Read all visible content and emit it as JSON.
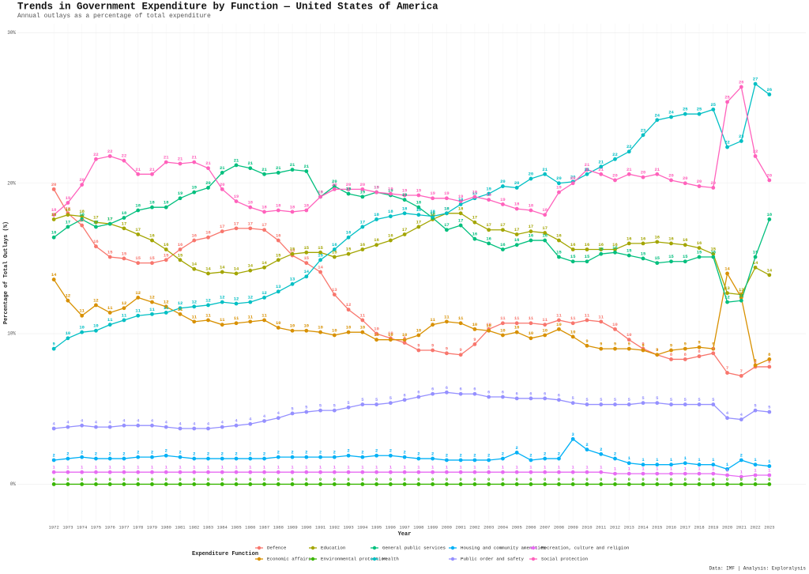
{
  "chart_data": {
    "type": "line",
    "title": "Trends in Government Expenditure by Function — United States of America",
    "subtitle": "Annual outlays as a percentage of total expenditure",
    "xlabel": "Year",
    "ylabel": "Percentage of Total Outlays (%)",
    "legend_title": "Expenditure Function",
    "caption": "Data: IMF | Analysis: Exploralysis",
    "legend_position": "bottom",
    "grid": true,
    "x": [
      1972,
      1973,
      1974,
      1975,
      1976,
      1977,
      1978,
      1979,
      1980,
      1981,
      1982,
      1983,
      1984,
      1985,
      1986,
      1987,
      1988,
      1989,
      1990,
      1991,
      1992,
      1993,
      1994,
      1995,
      1996,
      1997,
      1998,
      1999,
      2000,
      2001,
      2002,
      2003,
      2004,
      2005,
      2006,
      2007,
      2008,
      2009,
      2010,
      2011,
      2012,
      2013,
      2014,
      2015,
      2016,
      2017,
      2018,
      2019,
      2020,
      2021,
      2022,
      2023
    ],
    "xlim": [
      1969.4,
      2025.6
    ],
    "xticks": [
      1972,
      1973,
      1974,
      1975,
      1976,
      1977,
      1978,
      1979,
      1980,
      1981,
      1982,
      1983,
      1984,
      1985,
      1986,
      1987,
      1988,
      1989,
      1990,
      1991,
      1992,
      1993,
      1994,
      1995,
      1996,
      1997,
      1998,
      1999,
      2000,
      2001,
      2002,
      2003,
      2004,
      2005,
      2006,
      2007,
      2008,
      2009,
      2010,
      2011,
      2012,
      2013,
      2014,
      2015,
      2016,
      2017,
      2018,
      2019,
      2020,
      2021,
      2022,
      2023
    ],
    "ylim": [
      -2.5,
      30.6
    ],
    "yticks": [
      {
        "value": 0,
        "label": "0%"
      },
      {
        "value": 10,
        "label": "10%"
      },
      {
        "value": 20,
        "label": "20%"
      },
      {
        "value": 30,
        "label": "30%"
      }
    ],
    "series": [
      {
        "name": "Defence",
        "color": "#F8766D",
        "values": [
          19.6,
          18.0,
          17.2,
          15.8,
          15.1,
          15.0,
          14.7,
          14.7,
          14.9,
          15.6,
          16.2,
          16.4,
          16.8,
          17.0,
          17.0,
          16.9,
          16.2,
          15.2,
          14.7,
          14.1,
          12.6,
          11.6,
          10.9,
          10.0,
          9.7,
          9.4,
          8.9,
          8.9,
          8.7,
          8.6,
          9.3,
          10.3,
          10.7,
          10.7,
          10.7,
          10.6,
          10.9,
          10.7,
          10.9,
          10.8,
          10.3,
          9.6,
          9.0,
          8.6,
          8.3,
          8.3,
          8.5,
          8.7,
          7.4,
          7.2,
          7.8,
          7.8
        ],
        "value_labels": [
          "20",
          "18",
          "17",
          "16",
          "15",
          "15",
          "15",
          "15",
          "15",
          "16",
          "16",
          "16",
          "17",
          "17",
          "17",
          "17",
          "16",
          "15",
          "15",
          "14",
          "13",
          "12",
          "11",
          "10",
          "10",
          "9",
          "9",
          "9",
          "9",
          "9",
          "9",
          "10",
          "11",
          "11",
          "11",
          "11",
          "11",
          "11",
          "11",
          "11",
          "10",
          "10",
          "9",
          "9",
          "8",
          "8",
          "8",
          "9",
          "7",
          "7",
          "8",
          "8"
        ]
      },
      {
        "name": "Economic affairs",
        "color": "#D89000",
        "values": [
          13.6,
          12.2,
          11.2,
          11.9,
          11.4,
          11.7,
          12.4,
          12.1,
          11.8,
          11.3,
          10.8,
          10.9,
          10.6,
          10.7,
          10.8,
          10.9,
          10.4,
          10.2,
          10.2,
          10.1,
          9.9,
          10.1,
          10.1,
          9.6,
          9.6,
          9.6,
          9.9,
          10.6,
          10.8,
          10.7,
          10.3,
          10.2,
          9.9,
          10.1,
          9.7,
          9.9,
          10.3,
          9.8,
          9.2,
          9.0,
          9.0,
          9.0,
          8.9,
          8.6,
          8.9,
          9.0,
          9.1,
          9.0,
          14.0,
          12.4,
          7.9,
          8.3
        ],
        "value_labels": [
          "14",
          "12",
          "11",
          "12",
          "11",
          "12",
          "12",
          "12",
          "12",
          "11",
          "11",
          "11",
          "11",
          "11",
          "11",
          "11",
          "10",
          "10",
          "10",
          "10",
          "10",
          "10",
          "10",
          "10",
          "10",
          "10",
          "10",
          "11",
          "11",
          "11",
          "10",
          "10",
          "10",
          "10",
          "10",
          "10",
          "10",
          "10",
          "9",
          "9",
          "9",
          "9",
          "9",
          "9",
          "9",
          "9",
          "9",
          "9",
          "14",
          "12",
          "8",
          "8"
        ]
      },
      {
        "name": "Education",
        "color": "#A3A500",
        "values": [
          17.6,
          17.9,
          17.8,
          17.4,
          17.3,
          17.0,
          16.6,
          16.2,
          15.6,
          14.9,
          14.3,
          14.0,
          14.1,
          14.0,
          14.2,
          14.4,
          14.9,
          15.3,
          15.4,
          15.4,
          15.1,
          15.3,
          15.6,
          15.9,
          16.2,
          16.6,
          17.1,
          17.6,
          18.0,
          18.0,
          17.4,
          16.9,
          16.9,
          16.6,
          16.8,
          16.7,
          16.2,
          15.6,
          15.6,
          15.6,
          15.6,
          16.0,
          16.0,
          16.1,
          16.0,
          15.9,
          15.7,
          15.3,
          12.7,
          12.6,
          14.4,
          13.9
        ],
        "value_labels": [
          "18",
          "18",
          "18",
          "17",
          "17",
          "17",
          "17",
          "16",
          "16",
          "15",
          "14",
          "14",
          "14",
          "14",
          "14",
          "14",
          "15",
          "15",
          "15",
          "15",
          "15",
          "15",
          "16",
          "16",
          "16",
          "17",
          "17",
          "18",
          "18",
          "18",
          "17",
          "17",
          "17",
          "17",
          "17",
          "17",
          "16",
          "16",
          "16",
          "16",
          "16",
          "16",
          "16",
          "16",
          "16",
          "16",
          "16",
          "15",
          "13",
          "13",
          "14",
          "14"
        ]
      },
      {
        "name": "Environmental protection",
        "color": "#39B600",
        "values": [
          0,
          0,
          0,
          0,
          0,
          0,
          0,
          0,
          0,
          0,
          0,
          0,
          0,
          0,
          0,
          0,
          0,
          0,
          0,
          0,
          0,
          0,
          0,
          0,
          0,
          0,
          0,
          0,
          0,
          0,
          0,
          0,
          0,
          0,
          0,
          0,
          0,
          0,
          0,
          0,
          0,
          0,
          0,
          0,
          0,
          0,
          0,
          0,
          0,
          0,
          0,
          0
        ]
      },
      {
        "name": "General public services",
        "color": "#00BF7D",
        "values": [
          16.4,
          17.1,
          17.6,
          17.1,
          17.3,
          17.7,
          18.2,
          18.4,
          18.4,
          19.0,
          19.4,
          19.7,
          20.7,
          21.2,
          21.0,
          20.6,
          20.7,
          20.9,
          20.8,
          19.1,
          19.8,
          19.3,
          19.1,
          19.4,
          19.2,
          18.9,
          18.4,
          17.7,
          16.9,
          17.2,
          16.3,
          16.0,
          15.6,
          15.9,
          16.2,
          16.2,
          15.1,
          14.8,
          14.8,
          15.3,
          15.4,
          15.2,
          15.0,
          14.7,
          14.8,
          14.8,
          15.1,
          15.1,
          12.1,
          12.2,
          15.1,
          17.6
        ],
        "value_labels": [
          "16",
          "17",
          "18",
          "17",
          "17",
          "18",
          "18",
          "18",
          "18",
          "19",
          "19",
          "20",
          "21",
          "21",
          "21",
          "21",
          "21",
          "21",
          "21",
          "19",
          "20",
          "19",
          "19",
          "19",
          "19",
          "19",
          "18",
          "18",
          "17",
          "17",
          "16",
          "16",
          "16",
          "16",
          "16",
          "16",
          "15",
          "15",
          "15",
          "15",
          "15",
          "15",
          "15",
          "15",
          "15",
          "15",
          "15",
          "15",
          "12",
          "12",
          "15",
          "18"
        ]
      },
      {
        "name": "Health",
        "color": "#00BFC4",
        "values": [
          9.0,
          9.7,
          10.1,
          10.2,
          10.6,
          10.9,
          11.2,
          11.3,
          11.4,
          11.7,
          11.8,
          11.9,
          12.1,
          12.0,
          12.1,
          12.4,
          12.8,
          13.3,
          13.8,
          14.9,
          15.6,
          16.4,
          17.1,
          17.6,
          17.8,
          18.0,
          17.9,
          17.8,
          18.0,
          18.6,
          19.0,
          19.3,
          19.8,
          19.7,
          20.3,
          20.6,
          20.0,
          20.1,
          20.6,
          21.1,
          21.6,
          22.1,
          23.2,
          24.2,
          24.4,
          24.6,
          24.6,
          24.9,
          22.4,
          22.8,
          26.6,
          25.9
        ],
        "value_labels": [
          "9",
          "10",
          "10",
          "10",
          "11",
          "11",
          "11",
          "11",
          "11",
          "12",
          "12",
          "12",
          "12",
          "12",
          "12",
          "12",
          "13",
          "13",
          "14",
          "15",
          "16",
          "16",
          "17",
          "18",
          "18",
          "18",
          "18",
          "18",
          "18",
          "19",
          "19",
          "19",
          "20",
          "20",
          "20",
          "21",
          "20",
          "20",
          "21",
          "21",
          "22",
          "22",
          "23",
          "24",
          "24",
          "25",
          "25",
          "25",
          "22",
          "23",
          "27",
          "26"
        ]
      },
      {
        "name": "Housing and community amenities",
        "color": "#00B0F6",
        "values": [
          1.6,
          1.7,
          1.8,
          1.7,
          1.7,
          1.7,
          1.8,
          1.8,
          1.9,
          1.8,
          1.7,
          1.7,
          1.7,
          1.7,
          1.7,
          1.7,
          1.8,
          1.8,
          1.8,
          1.8,
          1.8,
          1.9,
          1.8,
          1.9,
          1.9,
          1.8,
          1.7,
          1.7,
          1.6,
          1.6,
          1.6,
          1.6,
          1.7,
          2.1,
          1.6,
          1.7,
          1.7,
          3.0,
          2.3,
          2.0,
          1.7,
          1.4,
          1.3,
          1.3,
          1.3,
          1.4,
          1.3,
          1.3,
          1.0,
          1.6,
          1.3,
          1.2
        ],
        "value_labels": [
          "2",
          "2",
          "2",
          "2",
          "2",
          "2",
          "2",
          "2",
          "2",
          "2",
          "2",
          "2",
          "2",
          "2",
          "2",
          "2",
          "2",
          "2",
          "2",
          "2",
          "2",
          "2",
          "2",
          "2",
          "2",
          "2",
          "2",
          "2",
          "2",
          "2",
          "2",
          "2",
          "2",
          "2",
          "2",
          "2",
          "2",
          "3",
          "2",
          "2",
          "2",
          "1",
          "1",
          "1",
          "1",
          "1",
          "1",
          "1",
          "1",
          "2",
          "1",
          "1"
        ]
      },
      {
        "name": "Public order and safety",
        "color": "#9590FF",
        "values": [
          3.7,
          3.8,
          3.9,
          3.8,
          3.8,
          3.9,
          3.9,
          3.9,
          3.8,
          3.7,
          3.7,
          3.7,
          3.8,
          3.9,
          4.0,
          4.2,
          4.4,
          4.7,
          4.8,
          4.9,
          4.9,
          5.1,
          5.3,
          5.3,
          5.4,
          5.6,
          5.8,
          6.0,
          6.1,
          6.0,
          6.0,
          5.8,
          5.8,
          5.7,
          5.7,
          5.7,
          5.6,
          5.4,
          5.3,
          5.3,
          5.3,
          5.3,
          5.4,
          5.4,
          5.3,
          5.3,
          5.3,
          5.3,
          4.4,
          4.3,
          4.9,
          4.8
        ],
        "value_labels": [
          "4",
          "4",
          "4",
          "4",
          "4",
          "4",
          "4",
          "4",
          "4",
          "4",
          "4",
          "4",
          "4",
          "4",
          "4",
          "4",
          "4",
          "5",
          "5",
          "5",
          "5",
          "5",
          "5",
          "5",
          "5",
          "6",
          "6",
          "6",
          "6",
          "6",
          "6",
          "6",
          "6",
          "6",
          "6",
          "6",
          "6",
          "5",
          "5",
          "5",
          "5",
          "5",
          "5",
          "5",
          "5",
          "5",
          "5",
          "5",
          "4",
          "4",
          "5",
          "5"
        ]
      },
      {
        "name": "Recreation, culture and religion",
        "color": "#E76BF3",
        "values": [
          0.8,
          0.8,
          0.8,
          0.8,
          0.8,
          0.8,
          0.8,
          0.8,
          0.8,
          0.8,
          0.8,
          0.8,
          0.8,
          0.8,
          0.8,
          0.8,
          0.8,
          0.8,
          0.8,
          0.8,
          0.8,
          0.8,
          0.8,
          0.8,
          0.8,
          0.8,
          0.8,
          0.8,
          0.8,
          0.8,
          0.8,
          0.8,
          0.8,
          0.8,
          0.8,
          0.8,
          0.8,
          0.8,
          0.8,
          0.8,
          0.7,
          0.7,
          0.7,
          0.7,
          0.7,
          0.7,
          0.7,
          0.7,
          0.6,
          0.5,
          0.6,
          0.6
        ],
        "value_labels": [
          "1",
          "1",
          "1",
          "1",
          "1",
          "1",
          "1",
          "1",
          "1",
          "1",
          "1",
          "1",
          "1",
          "1",
          "1",
          "1",
          "1",
          "1",
          "1",
          "1",
          "1",
          "1",
          "1",
          "1",
          "1",
          "1",
          "1",
          "1",
          "1",
          "1",
          "1",
          "1",
          "1",
          "1",
          "1",
          "1",
          "1",
          "1",
          "1",
          "1",
          "1",
          "1",
          "1",
          "1",
          "1",
          "1",
          "1",
          "1",
          "1",
          "1",
          "1",
          "1"
        ]
      },
      {
        "name": "Social protection",
        "color": "#FF62BC",
        "values": [
          17.9,
          18.7,
          19.9,
          21.6,
          21.8,
          21.5,
          20.6,
          20.6,
          21.4,
          21.3,
          21.4,
          21.0,
          19.6,
          18.8,
          18.4,
          18.1,
          18.2,
          18.1,
          18.2,
          19.1,
          19.6,
          19.6,
          19.6,
          19.4,
          19.3,
          19.2,
          19.2,
          19.0,
          19.0,
          18.8,
          19.1,
          18.9,
          18.6,
          18.3,
          18.2,
          17.9,
          19.4,
          20.0,
          20.9,
          20.6,
          20.2,
          20.6,
          20.4,
          20.6,
          20.2,
          20.0,
          19.8,
          19.7,
          25.4,
          26.4,
          21.8,
          20.2
        ],
        "value_labels": [
          "18",
          "19",
          "20",
          "22",
          "22",
          "22",
          "21",
          "21",
          "21",
          "21",
          "21",
          "21",
          "20",
          "19",
          "18",
          "18",
          "18",
          "18",
          "18",
          "19",
          "20",
          "20",
          "20",
          "19",
          "19",
          "19",
          "19",
          "19",
          "19",
          "19",
          "19",
          "19",
          "19",
          "18",
          "18",
          "18",
          "19",
          "20",
          "21",
          "21",
          "20",
          "21",
          "20",
          "21",
          "20",
          "20",
          "20",
          "20",
          "25",
          "26",
          "22",
          "20"
        ]
      }
    ]
  }
}
